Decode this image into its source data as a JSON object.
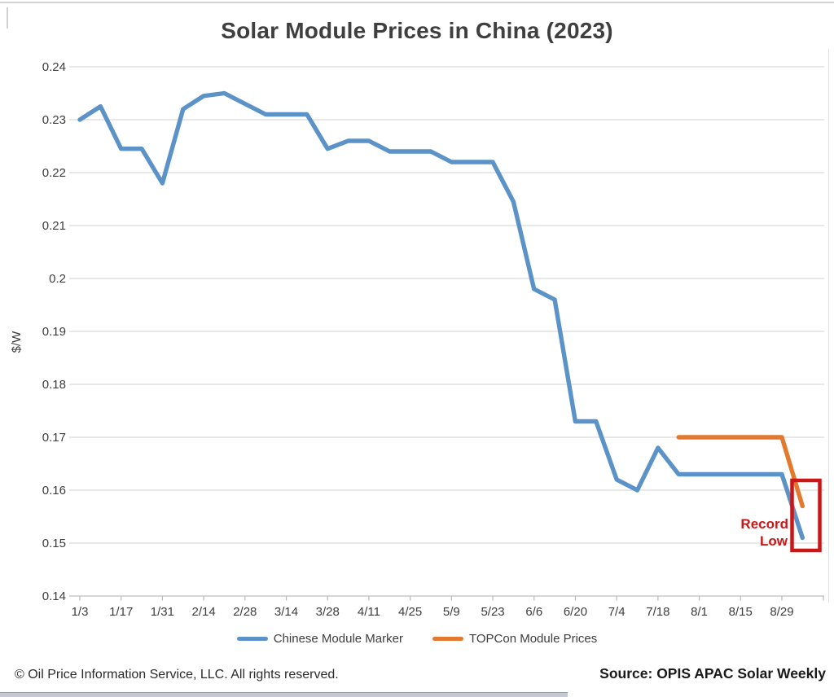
{
  "title": "Solar Module Prices in China (2023)",
  "footer": {
    "copyright": "© Oil Price Information Service, LLC.  All rights reserved.",
    "source": "Source: OPIS APAC Solar Weekly"
  },
  "annotation": {
    "text_line1": "Record",
    "text_line2": "Low",
    "color": "#c91616"
  },
  "legend": [
    {
      "key": "chinese-module-marker",
      "label": "Chinese Module Marker",
      "color": "#5b93c8"
    },
    {
      "key": "topcon-module-prices",
      "label": "TOPCon Module Prices",
      "color": "#e2792f"
    }
  ],
  "colors": {
    "blue_series": "#5b93c8",
    "orange_series": "#e2792f",
    "annotation_red": "#c91616",
    "grid": "#d9d9d9",
    "axis_text": "#3d3d3d",
    "title_text": "#3f3f3f"
  },
  "chart_data": {
    "type": "line",
    "title": "Solar Module Prices in China (2023)",
    "xlabel": "",
    "ylabel": "$/W",
    "ylim": [
      0.14,
      0.24
    ],
    "grid": "horizontal",
    "legend_position": "bottom",
    "x": [
      "1/3",
      "1/10",
      "1/17",
      "1/24",
      "1/31",
      "2/7",
      "2/14",
      "2/21",
      "2/28",
      "3/7",
      "3/14",
      "3/21",
      "3/28",
      "4/4",
      "4/11",
      "4/18",
      "4/25",
      "5/2",
      "5/9",
      "5/16",
      "5/23",
      "5/30",
      "6/6",
      "6/13",
      "6/20",
      "6/27",
      "7/4",
      "7/11",
      "7/18",
      "7/25",
      "8/1",
      "8/8",
      "8/15",
      "8/22",
      "8/29",
      "9/5"
    ],
    "x_tick_labels": [
      "1/3",
      "1/17",
      "1/31",
      "2/14",
      "2/28",
      "3/14",
      "3/28",
      "4/11",
      "4/25",
      "5/9",
      "5/23",
      "6/6",
      "6/20",
      "7/4",
      "7/18",
      "8/1",
      "8/15",
      "8/29"
    ],
    "y_ticks": [
      "0.24",
      "0.23",
      "0.22",
      "0.21",
      "0.2",
      "0.19",
      "0.18",
      "0.17",
      "0.16",
      "0.15",
      "0.14"
    ],
    "series": [
      {
        "name": "Chinese Module Marker",
        "key": "chinese-module-marker",
        "color": "#5b93c8",
        "values": [
          0.23,
          0.2325,
          0.2245,
          0.2245,
          0.218,
          0.232,
          0.2345,
          0.235,
          0.233,
          0.231,
          0.231,
          0.231,
          0.2245,
          0.226,
          0.226,
          0.224,
          0.224,
          0.224,
          0.222,
          0.222,
          0.222,
          0.2145,
          0.198,
          0.196,
          0.173,
          0.173,
          0.162,
          0.16,
          0.168,
          0.163,
          0.163,
          0.163,
          0.163,
          0.163,
          0.163,
          0.151
        ]
      },
      {
        "name": "TOPCon Module Prices",
        "key": "topcon-module-prices",
        "color": "#e2792f",
        "values": [
          null,
          null,
          null,
          null,
          null,
          null,
          null,
          null,
          null,
          null,
          null,
          null,
          null,
          null,
          null,
          null,
          null,
          null,
          null,
          null,
          null,
          null,
          null,
          null,
          null,
          null,
          null,
          null,
          null,
          0.17,
          0.17,
          0.17,
          0.17,
          0.17,
          0.17,
          0.157
        ]
      }
    ],
    "annotation": {
      "text": "Record Low",
      "applies_to": "last points of both series"
    }
  }
}
